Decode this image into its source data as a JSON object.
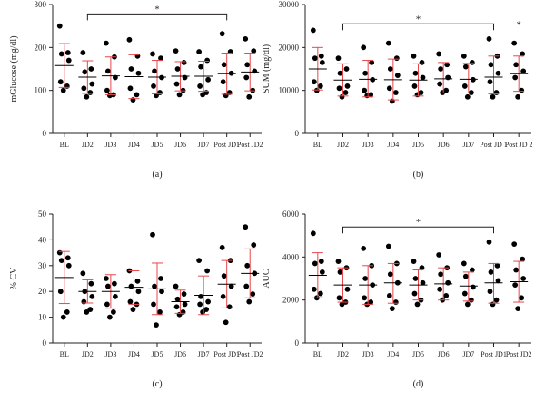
{
  "figure": {
    "colors": {
      "errorbar": "#e8474c",
      "point": "#000000",
      "axis": "#231f20",
      "bracket": "#231f20"
    }
  },
  "chart_data": [
    {
      "id": "a",
      "type": "scatter",
      "panel_label": "(a)",
      "ylabel": "mGlucose (mg/dl)",
      "categories": [
        "BL",
        "JD2",
        "JD3",
        "JD4",
        "JD5",
        "JD6",
        "JD7",
        "Post JD1",
        "Post JD2"
      ],
      "ylim": [
        0,
        300
      ],
      "yticks": [
        0,
        100,
        200,
        300
      ],
      "points": [
        [
          250,
          188,
          185,
          170,
          120,
          110,
          100
        ],
        [
          188,
          150,
          143,
          115,
          105,
          95,
          85
        ],
        [
          210,
          178,
          145,
          130,
          100,
          90,
          88
        ],
        [
          218,
          180,
          150,
          140,
          105,
          90,
          78
        ],
        [
          185,
          175,
          145,
          130,
          110,
          95,
          88
        ],
        [
          192,
          165,
          150,
          130,
          115,
          100,
          90
        ],
        [
          190,
          170,
          155,
          125,
          110,
          95,
          90
        ],
        [
          232,
          190,
          160,
          140,
          120,
          95,
          88
        ],
        [
          220,
          192,
          160,
          145,
          130,
          100,
          85
        ]
      ],
      "mean": [
        158,
        131,
        134,
        132,
        131,
        133,
        133,
        139,
        143
      ],
      "upper": [
        209,
        169,
        178,
        183,
        170,
        167,
        168,
        187,
        187
      ],
      "lower": [
        107,
        93,
        90,
        81,
        92,
        99,
        98,
        91,
        99
      ],
      "annotations": [
        {
          "type": "bracket",
          "from": "JD2",
          "to": "Post JD1",
          "y": 278,
          "label": "*"
        }
      ]
    },
    {
      "id": "b",
      "type": "scatter",
      "panel_label": "(b)",
      "ylabel": "SUM (mg/dl)",
      "categories": [
        "BL",
        "JD2",
        "JD3",
        "JD4",
        "JD5",
        "JD6",
        "JD7",
        "Post JD 1",
        "Post JD 2"
      ],
      "ylim": [
        0,
        30000
      ],
      "yticks": [
        0,
        10000,
        20000,
        30000
      ],
      "points": [
        [
          24000,
          18000,
          17500,
          16500,
          12000,
          11000,
          10000
        ],
        [
          17500,
          15000,
          14000,
          11000,
          10500,
          9500,
          8500
        ],
        [
          20000,
          16500,
          14000,
          12500,
          10000,
          9000,
          8800
        ],
        [
          21000,
          17500,
          15000,
          13500,
          10500,
          9500,
          7500
        ],
        [
          18000,
          16500,
          14000,
          13000,
          11000,
          9500,
          9000
        ],
        [
          18500,
          16000,
          15000,
          13000,
          11500,
          10000,
          9500
        ],
        [
          18000,
          16500,
          15500,
          12500,
          11000,
          9500,
          8500
        ],
        [
          22000,
          18000,
          16000,
          14000,
          12000,
          9500,
          8500
        ],
        [
          21000,
          18500,
          16000,
          14500,
          13000,
          10000,
          8500
        ]
      ],
      "mean": [
        15000,
        12400,
        12600,
        12500,
        12400,
        12700,
        12600,
        13100,
        13900
      ],
      "upper": [
        20000,
        16200,
        17000,
        17300,
        16200,
        16500,
        16300,
        18000,
        18000
      ],
      "lower": [
        10100,
        8700,
        8500,
        7800,
        8700,
        9400,
        9400,
        9200,
        9800
      ],
      "annotations": [
        {
          "type": "bracket",
          "from": "JD2",
          "to": "Post JD 1",
          "y": 25500,
          "label": "*"
        },
        {
          "type": "star",
          "at": "Post JD 2",
          "y": 25500,
          "label": "*"
        }
      ]
    },
    {
      "id": "c",
      "type": "scatter",
      "panel_label": "(c)",
      "ylabel": "% CV",
      "categories": [
        "BL",
        "JD2",
        "JD3",
        "JD4",
        "JD5",
        "JD6",
        "JD7",
        "Post JD1",
        "Post JD2"
      ],
      "ylim": [
        0,
        50
      ],
      "yticks": [
        0,
        10,
        20,
        30,
        40,
        50
      ],
      "points": [
        [
          35,
          33,
          32,
          30,
          20,
          12,
          10
        ],
        [
          27,
          23,
          20,
          18,
          16,
          13,
          12
        ],
        [
          25,
          23,
          22,
          18,
          15,
          12,
          10
        ],
        [
          28,
          24,
          22,
          20,
          16,
          15,
          13
        ],
        [
          42,
          25,
          22,
          20,
          15,
          12,
          7
        ],
        [
          22,
          19,
          17,
          15,
          14,
          12,
          11
        ],
        [
          32,
          28,
          18,
          16,
          15,
          13,
          12
        ],
        [
          37,
          32,
          26,
          22,
          18,
          14,
          8
        ],
        [
          45,
          38,
          30,
          27,
          22,
          19,
          16
        ]
      ],
      "mean": [
        25.4,
        20,
        20,
        21.6,
        21,
        16,
        18.5,
        22.8,
        27
      ],
      "upper": [
        35.5,
        24.5,
        26.5,
        28,
        31,
        20.5,
        26,
        32,
        36.5
      ],
      "lower": [
        15.3,
        15.5,
        13.5,
        15,
        11,
        11.5,
        11,
        13.6,
        17.5
      ],
      "annotations": []
    },
    {
      "id": "d",
      "type": "scatter",
      "panel_label": "(d)",
      "ylabel": "AUC",
      "categories": [
        "BL",
        "JD2",
        "JD3",
        "JD4",
        "JD5",
        "JD6",
        "JD7",
        "Post JD1",
        "Post JD2"
      ],
      "ylim": [
        0,
        6000
      ],
      "yticks": [
        0,
        2000,
        4000,
        6000
      ],
      "points": [
        [
          5100,
          3800,
          3700,
          3300,
          2500,
          2300,
          2100
        ],
        [
          3800,
          3500,
          3300,
          2500,
          2100,
          1900,
          1800
        ],
        [
          4400,
          3600,
          3000,
          2700,
          2100,
          1900,
          1800
        ],
        [
          4500,
          3700,
          3200,
          2800,
          2200,
          1900,
          1600
        ],
        [
          3800,
          3500,
          3000,
          2800,
          2300,
          2000,
          1800
        ],
        [
          4100,
          3500,
          3200,
          2800,
          2500,
          2200,
          2000
        ],
        [
          3700,
          3400,
          3100,
          2600,
          2300,
          2000,
          1800
        ],
        [
          4700,
          3600,
          3300,
          2900,
          2400,
          2000,
          1800
        ],
        [
          4600,
          3900,
          3400,
          3000,
          2700,
          2100,
          1600
        ]
      ],
      "mean": [
        3150,
        2700,
        2700,
        2800,
        2700,
        2750,
        2650,
        2800,
        2850
      ],
      "upper": [
        4200,
        3500,
        3600,
        3700,
        3400,
        3500,
        3300,
        3700,
        3800
      ],
      "lower": [
        2100,
        1900,
        1800,
        1850,
        2000,
        2000,
        1950,
        1850,
        1900
      ],
      "annotations": [
        {
          "type": "bracket",
          "from": "JD2",
          "to": "Post JD1",
          "y": 5400,
          "label": "*"
        }
      ]
    }
  ]
}
